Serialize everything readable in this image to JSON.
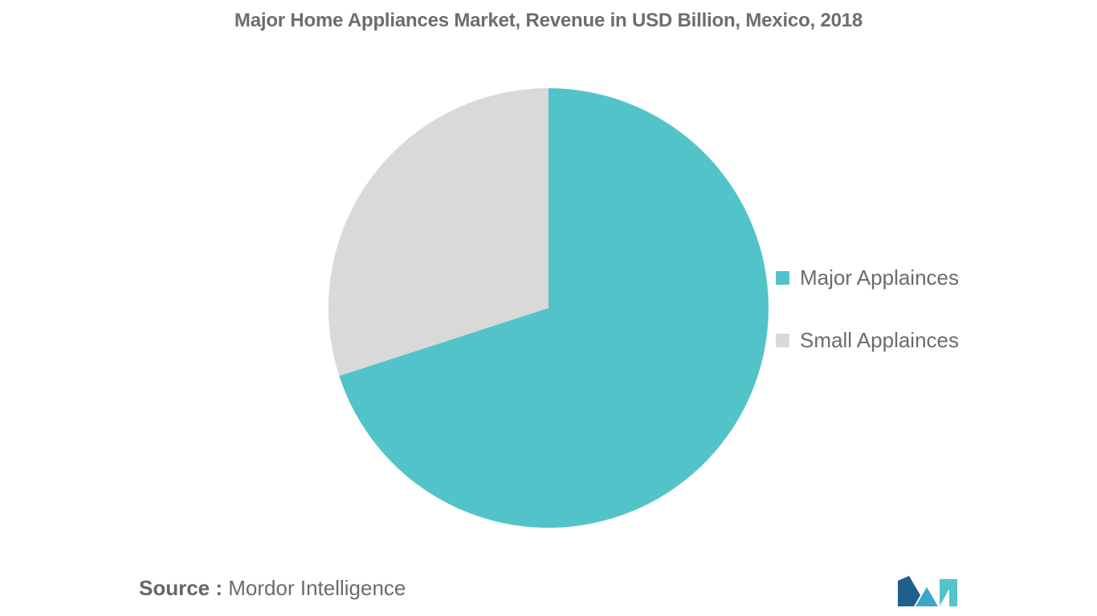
{
  "chart_data": {
    "type": "pie",
    "title": "Major Home Appliances Market, Revenue in USD Billion, Mexico, 2018",
    "slices": [
      {
        "name": "Major Applaince",
        "label": "Major Applainces",
        "value": 70,
        "color": "#52c4c9"
      },
      {
        "name": "Small Applaince",
        "label": "Small Applainces",
        "value": 30,
        "color": "#d9d9d9"
      }
    ],
    "legend_position": "right",
    "start_angle_deg": 0,
    "direction": "clockwise"
  },
  "source": {
    "prefix": "Source :",
    "text": "Mordor Intelligence"
  },
  "logo": {
    "icon": "mordor-intelligence-logo",
    "colors": [
      "#1f5f8b",
      "#3aa6c9",
      "#52c4c9"
    ]
  }
}
